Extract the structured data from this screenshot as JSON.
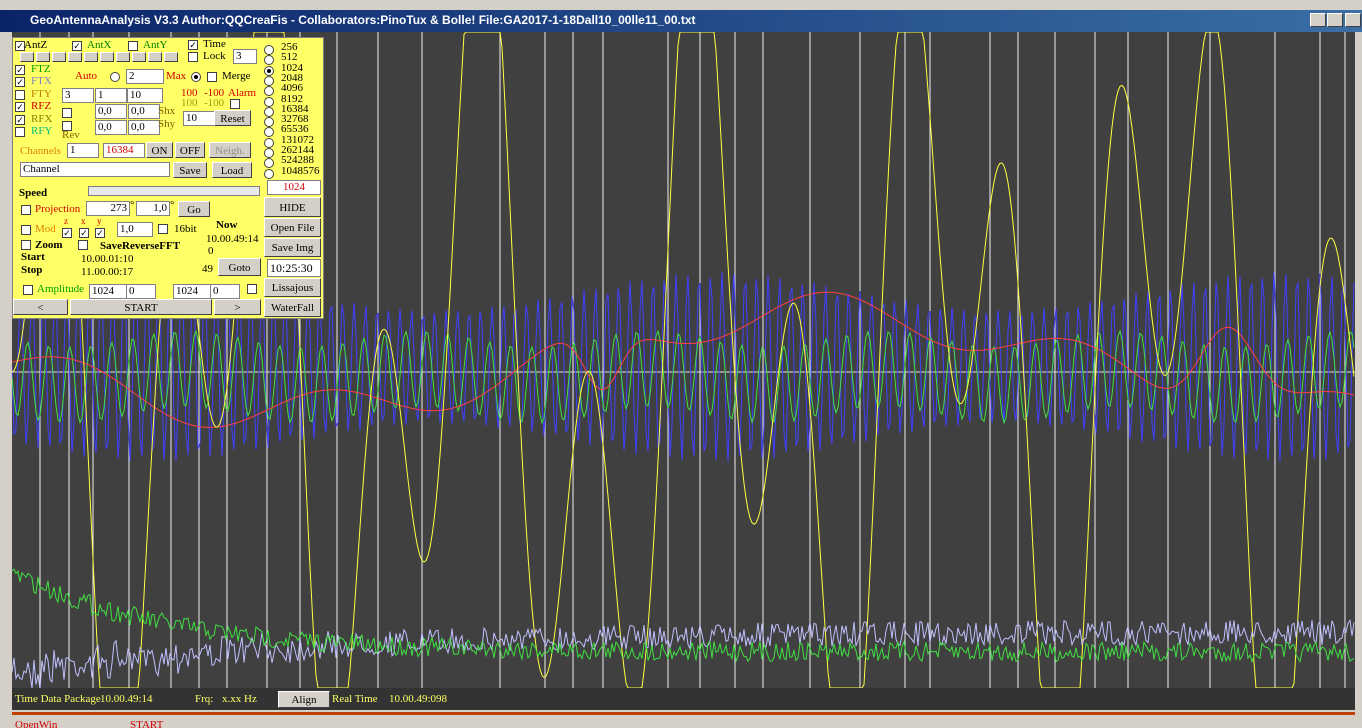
{
  "window": {
    "title": "GeoAntennaAnalysis V3.3 Author:QQCreaFis - Collaborators:PinoTux & Bolle!   File:GA2017-1-18Dall10_00lle11_00.txt"
  },
  "panel": {
    "axes": [
      "AntZ",
      "AntX",
      "AntY"
    ],
    "time": "Time",
    "lock": "Lock",
    "lock_value": "3",
    "traces": [
      "FTZ",
      "FTX",
      "FTY",
      "RFZ",
      "RFX",
      "RFY"
    ],
    "auto": "Auto",
    "auto_value": "2",
    "max": "Max",
    "merge": "Merge",
    "fields_a": [
      "3",
      "1",
      "10"
    ],
    "offsets": [
      "0,0",
      "0,0",
      "0,0",
      "0,0"
    ],
    "shx": "Shx",
    "shy": "Shy",
    "alarm": [
      "100",
      "-100",
      "Alarm"
    ],
    "alarm2": [
      "100",
      "-100"
    ],
    "reset_value": "10",
    "reset": "Reset",
    "rev": "Rev",
    "channels": "Channels",
    "channels_from": "1",
    "channels_to": "16384",
    "on": "ON",
    "off": "OFF",
    "neigh": "Neigh.",
    "channel_name": "Channel",
    "save": "Save",
    "load": "Load",
    "speed": "Speed",
    "projection": "Projection",
    "proj_angle": "273",
    "deg": "°",
    "proj_step": "1,0",
    "deg2": "°",
    "go": "Go",
    "mod": "Mod",
    "mod_axes": [
      "z",
      "x",
      "y"
    ],
    "mod_value": "1,0",
    "bit16": "16bit",
    "now": "Now",
    "now_time": "10.00.49:14",
    "now_index": "0",
    "zoom": "Zoom",
    "save_reverse_fft": "SaveReverseFFT",
    "start": "Start",
    "start_time": "10.00.01:10",
    "stop": "Stop",
    "stop_time": "11.00.00:17",
    "goto_value": "49",
    "goto": "Goto",
    "amplitude": "Amplitude",
    "amp_fields": [
      "1024",
      "0",
      "1024",
      "0"
    ],
    "prev": "<",
    "start_button": "START",
    "next": ">"
  },
  "side": {
    "sizes": [
      "256",
      "512",
      "1024",
      "2048",
      "4096",
      "8192",
      "16384",
      "32768",
      "65536",
      "131072",
      "262144",
      "524288",
      "1048576"
    ],
    "size_value": "1024",
    "hide": "HIDE",
    "open_file": "Open File",
    "save_img": "Save Img",
    "clock": "10:25:30",
    "lissajous": "Lissajous",
    "waterfall": "WaterFall"
  },
  "status": {
    "label": "Time Data Package",
    "time": "10.00.49:14",
    "frq": "Frq:",
    "frq_value": "x.xx Hz",
    "align": "Align",
    "real_time": "Real Time",
    "real_time_value": "10.00.49:098"
  },
  "taskbar": {
    "open_win": "OpenWin",
    "start": "START"
  }
}
